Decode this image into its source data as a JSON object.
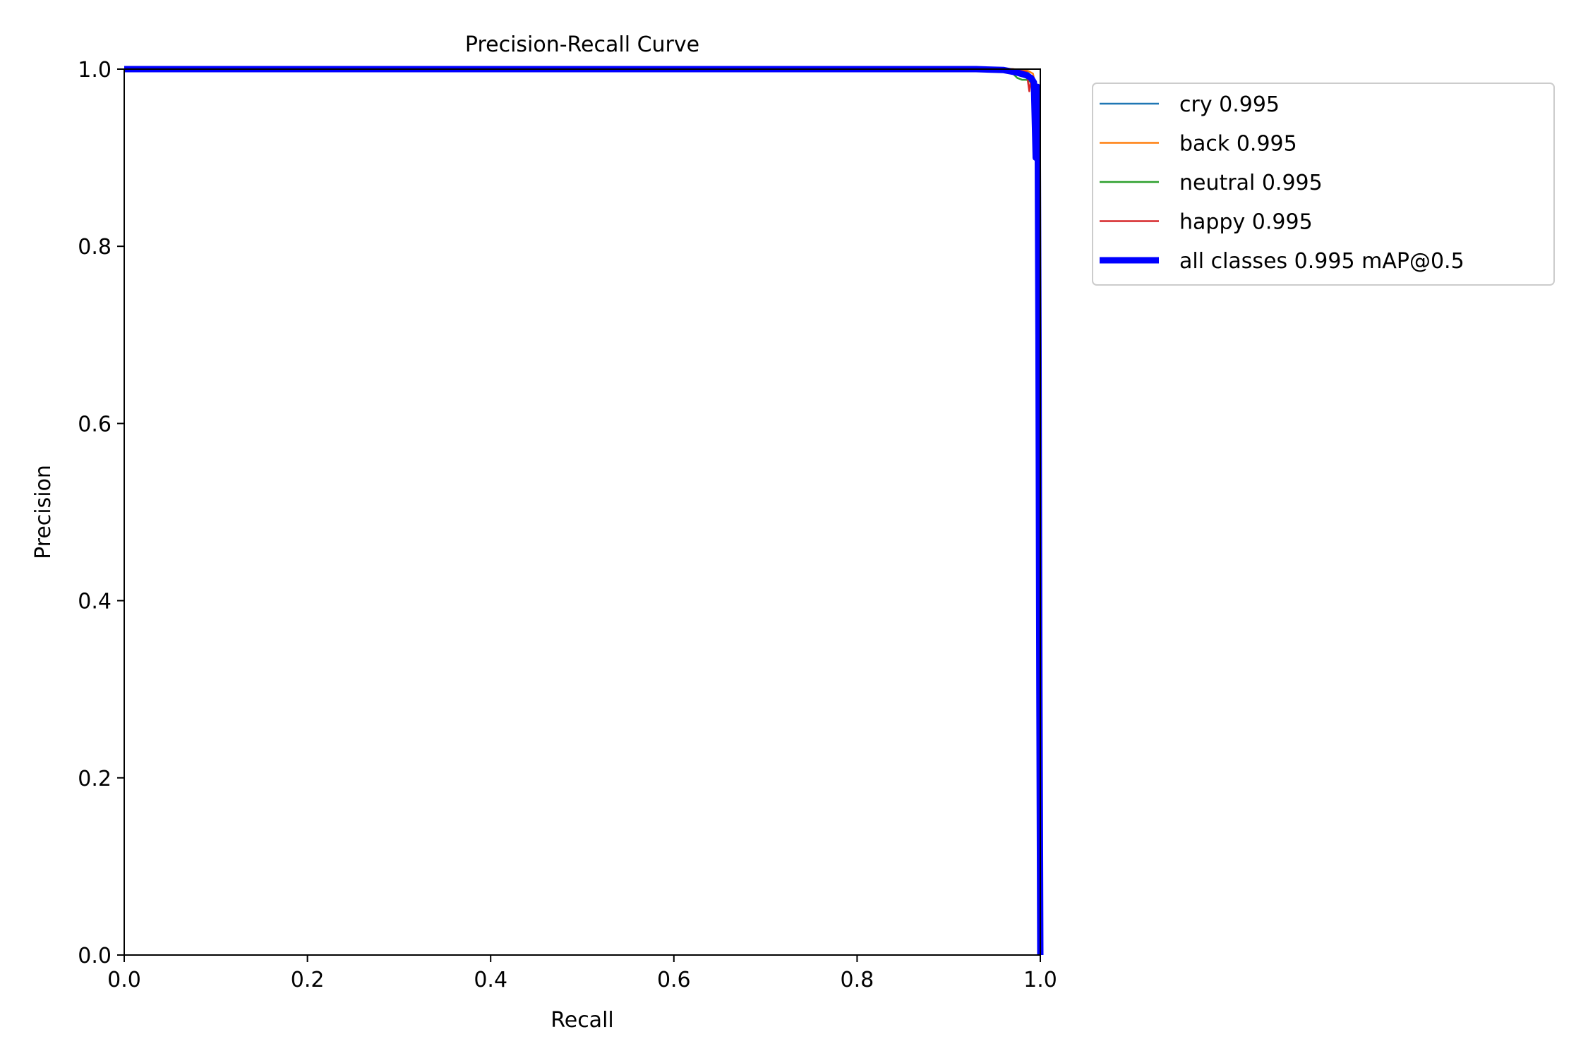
{
  "chart_data": {
    "type": "line",
    "title": "Precision-Recall Curve",
    "xlabel": "Recall",
    "ylabel": "Precision",
    "xlim": [
      0.0,
      1.0
    ],
    "ylim": [
      0.0,
      1.0
    ],
    "xticks": [
      "0.0",
      "0.2",
      "0.4",
      "0.6",
      "0.8",
      "1.0"
    ],
    "yticks": [
      "0.0",
      "0.2",
      "0.4",
      "0.6",
      "0.8",
      "1.0"
    ],
    "grid": false,
    "legend_position": "outside-upper-right",
    "series": [
      {
        "name": "cry 0.995",
        "color": "#1f77b4",
        "x": [
          0.0,
          0.93,
          0.97,
          0.985,
          0.992,
          0.995,
          0.997,
          0.998,
          0.999,
          1.0
        ],
        "y": [
          1.0,
          1.0,
          1.0,
          0.998,
          0.99,
          0.97,
          0.9,
          0.6,
          0.2,
          0.0
        ]
      },
      {
        "name": "back 0.995",
        "color": "#ff7f0e",
        "x": [
          0.0,
          0.93,
          0.97,
          0.985,
          0.992,
          0.995,
          0.997,
          0.998,
          0.999,
          1.0
        ],
        "y": [
          1.0,
          1.0,
          1.0,
          0.999,
          0.995,
          0.98,
          0.92,
          0.6,
          0.2,
          0.0
        ]
      },
      {
        "name": "neutral 0.995",
        "color": "#2ca02c",
        "x": [
          0.0,
          0.93,
          0.96,
          0.97,
          0.975,
          0.98,
          0.985,
          0.99,
          0.995,
          0.997,
          0.999,
          1.0
        ],
        "y": [
          1.0,
          1.0,
          0.999,
          0.995,
          0.99,
          0.988,
          0.988,
          0.985,
          0.95,
          0.8,
          0.3,
          0.0
        ]
      },
      {
        "name": "happy 0.995",
        "color": "#d62728",
        "x": [
          0.0,
          0.93,
          0.97,
          0.985,
          0.988,
          0.99,
          0.993,
          0.996,
          0.998,
          0.999,
          1.0
        ],
        "y": [
          1.0,
          1.0,
          1.0,
          0.997,
          0.975,
          0.99,
          0.985,
          0.9,
          0.6,
          0.2,
          0.0
        ]
      },
      {
        "name": "all classes 0.995 mAP@0.5",
        "color": "#0000ff",
        "x": [
          0.0,
          0.93,
          0.96,
          0.975,
          0.985,
          0.99,
          0.993,
          0.995,
          0.997,
          0.998,
          0.999,
          1.0
        ],
        "y": [
          1.0,
          1.0,
          0.999,
          0.996,
          0.993,
          0.99,
          0.985,
          0.9,
          0.98,
          0.7,
          0.3,
          0.0
        ]
      }
    ]
  }
}
